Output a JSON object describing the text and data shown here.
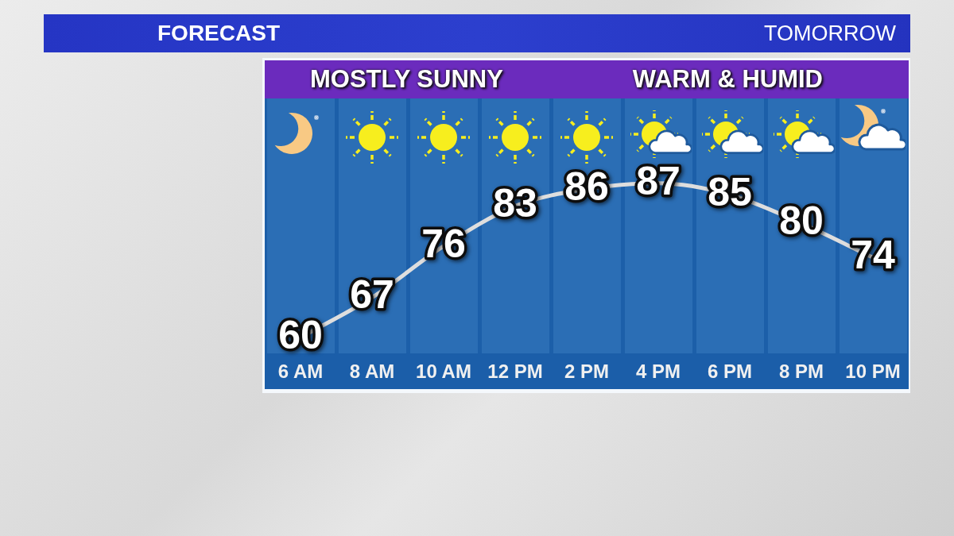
{
  "chart_data": {
    "type": "line",
    "title": "FORECAST",
    "subtitle": "TOMORROW",
    "annotations": [
      "MOSTLY SUNNY",
      "WARM & HUMID"
    ],
    "categories": [
      "6 AM",
      "8 AM",
      "10 AM",
      "12 PM",
      "2 PM",
      "4 PM",
      "6 PM",
      "8 PM",
      "10 PM"
    ],
    "series": [
      {
        "color": "#dedede",
        "values": [
          60,
          67,
          76,
          83,
          86,
          87,
          85,
          80,
          74
        ]
      }
    ],
    "data_labels": true,
    "marker": "none",
    "grid": "x",
    "tick_labels": "x"
  }
}
